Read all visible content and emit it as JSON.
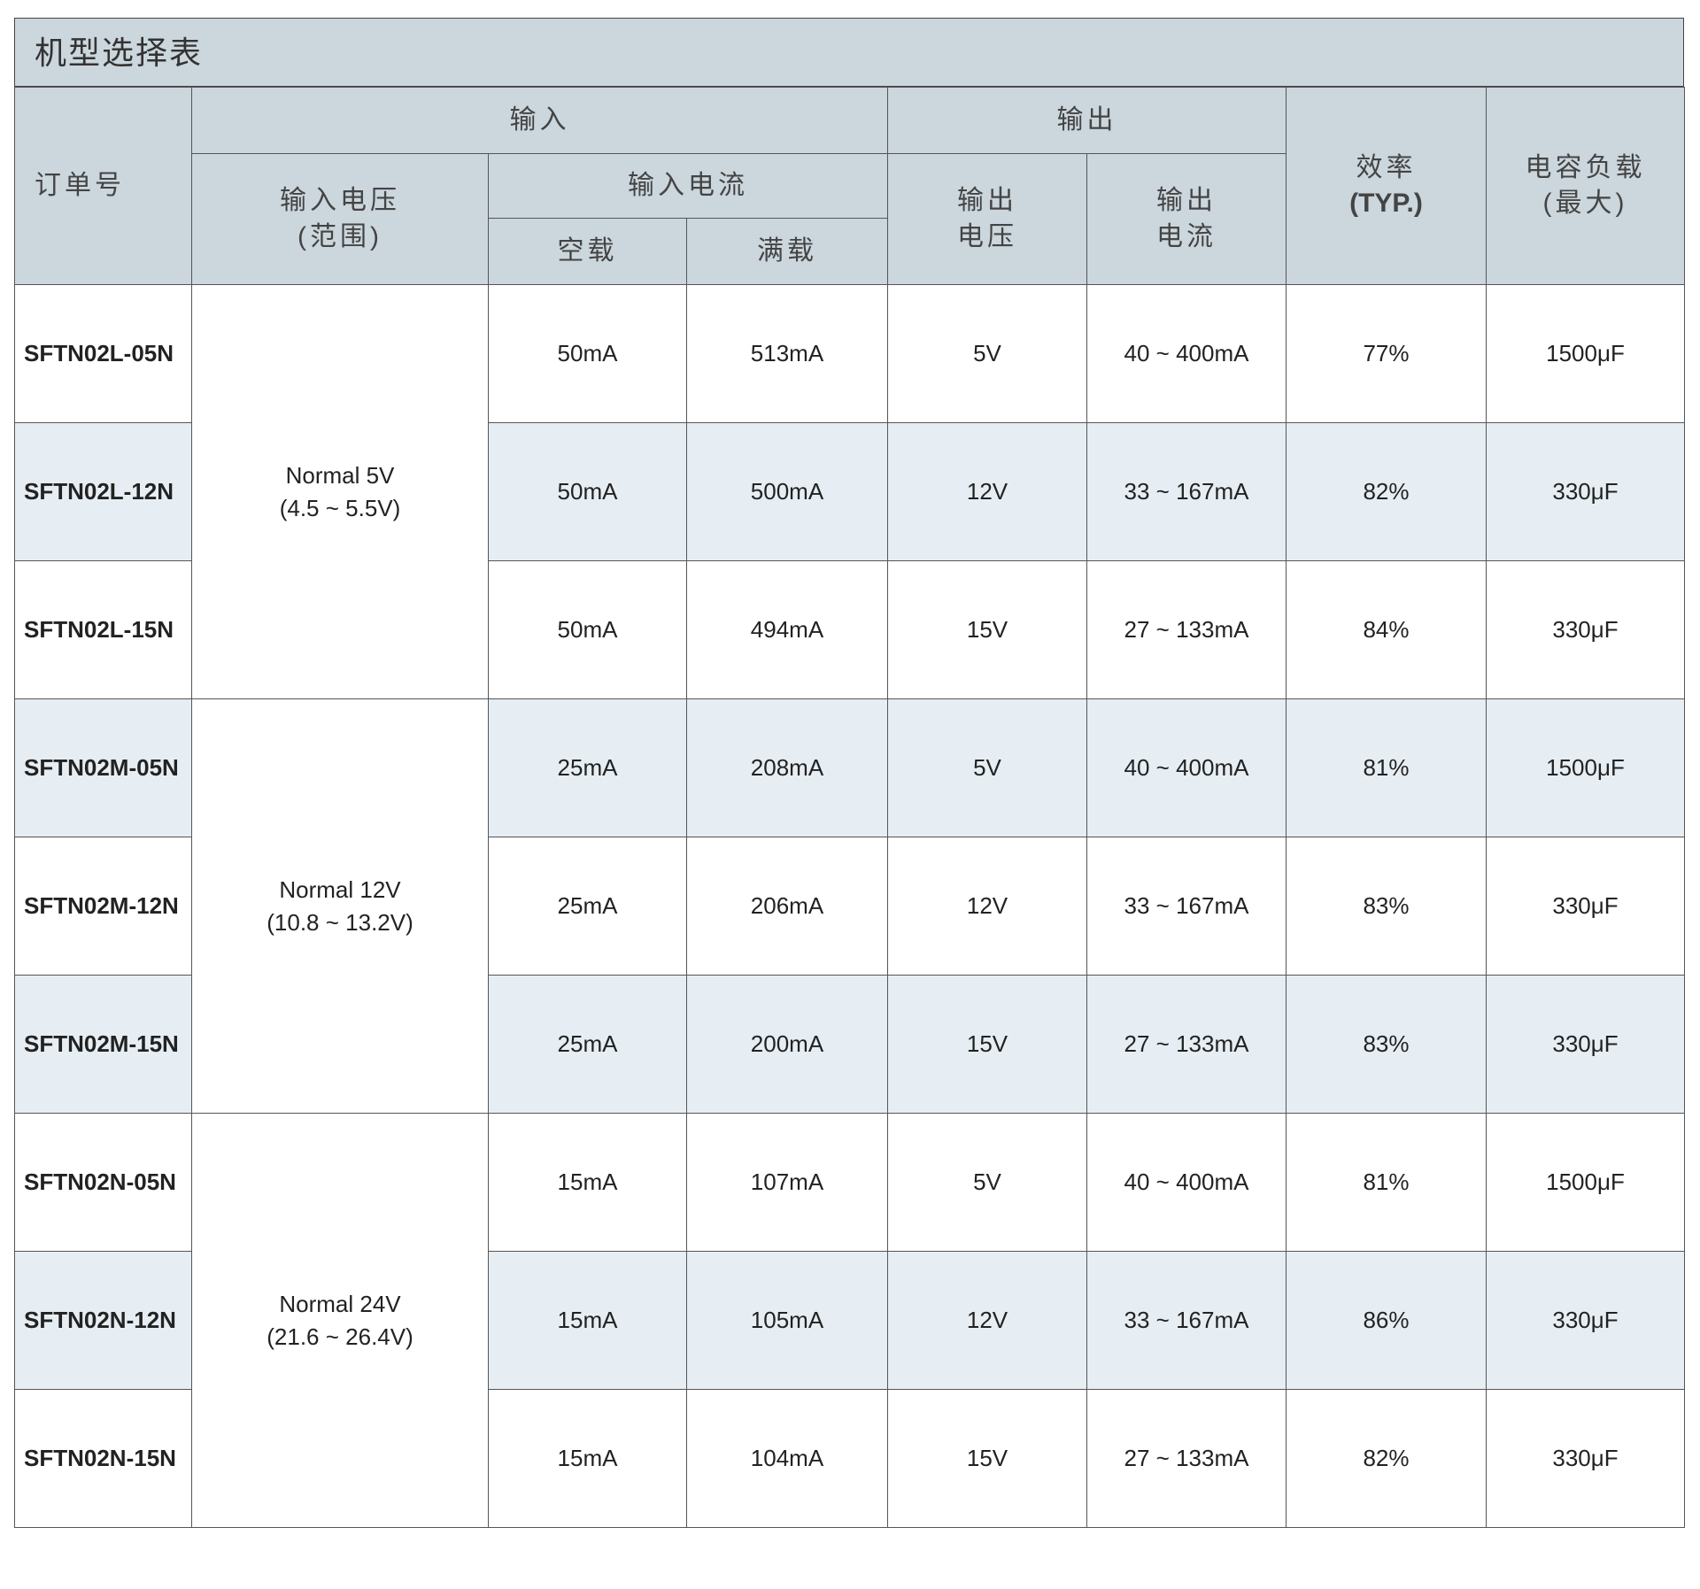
{
  "title": "机型选择表",
  "headers": {
    "order_no": "订单号",
    "input": "输入",
    "input_voltage": "输入电压",
    "input_voltage_sub": "(范围)",
    "input_current": "输入电流",
    "no_load": "空载",
    "full_load": "满载",
    "output": "输出",
    "output_voltage_1": "输出",
    "output_voltage_2": "电压",
    "output_current_1": "输出",
    "output_current_2": "电流",
    "efficiency": "效率",
    "efficiency_sub": "(TYP.)",
    "cap_load": "电容负载",
    "cap_load_sub": "(最大)"
  },
  "groups": [
    {
      "voltage": "Normal 5V",
      "range": "(4.5 ~ 5.5V)"
    },
    {
      "voltage": "Normal 12V",
      "range": "(10.8 ~ 13.2V)"
    },
    {
      "voltage": "Normal 24V",
      "range": "(21.6 ~ 26.4V)"
    }
  ],
  "rows": [
    {
      "model": "SFTN02L-05N",
      "no_load": "50mA",
      "full_load": "513mA",
      "vout": "5V",
      "iout": "40 ~ 400mA",
      "eff": "77%",
      "cap": "1500μF"
    },
    {
      "model": "SFTN02L-12N",
      "no_load": "50mA",
      "full_load": "500mA",
      "vout": "12V",
      "iout": "33 ~ 167mA",
      "eff": "82%",
      "cap": "330μF"
    },
    {
      "model": "SFTN02L-15N",
      "no_load": "50mA",
      "full_load": "494mA",
      "vout": "15V",
      "iout": "27 ~ 133mA",
      "eff": "84%",
      "cap": "330μF"
    },
    {
      "model": "SFTN02M-05N",
      "no_load": "25mA",
      "full_load": "208mA",
      "vout": "5V",
      "iout": "40 ~ 400mA",
      "eff": "81%",
      "cap": "1500μF"
    },
    {
      "model": "SFTN02M-12N",
      "no_load": "25mA",
      "full_load": "206mA",
      "vout": "12V",
      "iout": "33 ~ 167mA",
      "eff": "83%",
      "cap": "330μF"
    },
    {
      "model": "SFTN02M-15N",
      "no_load": "25mA",
      "full_load": "200mA",
      "vout": "15V",
      "iout": "27 ~ 133mA",
      "eff": "83%",
      "cap": "330μF"
    },
    {
      "model": "SFTN02N-05N",
      "no_load": "15mA",
      "full_load": "107mA",
      "vout": "5V",
      "iout": "40 ~ 400mA",
      "eff": "81%",
      "cap": "1500μF"
    },
    {
      "model": "SFTN02N-12N",
      "no_load": "15mA",
      "full_load": "105mA",
      "vout": "12V",
      "iout": "33 ~ 167mA",
      "eff": "86%",
      "cap": "330μF"
    },
    {
      "model": "SFTN02N-15N",
      "no_load": "15mA",
      "full_load": "104mA",
      "vout": "15V",
      "iout": "27 ~ 133mA",
      "eff": "82%",
      "cap": "330μF"
    }
  ],
  "colors": {
    "header_bg": "#cbd6dd",
    "alt_row_bg": "#e6eef4",
    "border": "#555555"
  }
}
